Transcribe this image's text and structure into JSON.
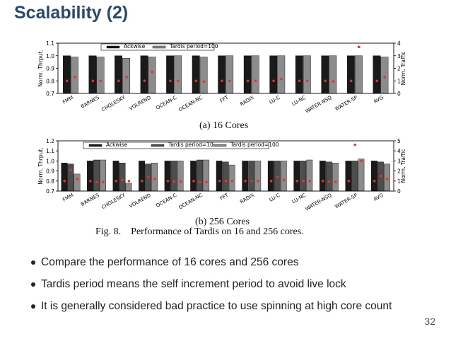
{
  "slide": {
    "title": "Scalability (2)",
    "page_number": "32",
    "figure_caption": "Fig. 8.    Performance of Tardis on 16 and 256 cores.",
    "bullets": [
      "Compare the performance of 16 cores and 256 cores",
      "Tardis period means the self increment period to avoid live lock",
      "It is generally considered bad practice to use spinning at high core count"
    ]
  },
  "colors": {
    "series_black": "#1a1a1a",
    "series_dark": "#4d4d4d",
    "series_gray": "#8c8c8c",
    "traffic_dot": "#e8332a",
    "title": "#2a4a6b"
  },
  "chart_data": [
    {
      "type": "bar",
      "subcaption": "(a) 16 Cores",
      "ylabel": "Norm. Thrput.",
      "y2label": "Norm. Traffic",
      "ylim": [
        0.7,
        1.1
      ],
      "yticks": [
        "0.7",
        "0.8",
        "0.9",
        "1.0",
        "1.1"
      ],
      "y2lim": [
        0,
        4
      ],
      "y2ticks": [
        "0",
        "1",
        "2",
        "3",
        "4"
      ],
      "categories": [
        "FMM",
        "BARNES",
        "CHOLESKY",
        "VOLREND",
        "OCEAN-C",
        "OCEAN-NC",
        "FFT",
        "RADIX",
        "LU-C",
        "LU-NC",
        "WATER-NSQ",
        "WATER-SP",
        "AVG"
      ],
      "series": [
        {
          "name": "Ackwise",
          "values": [
            1.0,
            1.0,
            1.0,
            1.0,
            1.0,
            1.0,
            1.0,
            1.0,
            1.0,
            1.0,
            1.0,
            1.0,
            1.0
          ]
        },
        {
          "name": "Tardis period=100",
          "values": [
            0.99,
            0.99,
            0.98,
            0.99,
            1.0,
            0.99,
            1.0,
            1.0,
            1.0,
            1.0,
            1.0,
            1.0,
            0.99
          ]
        }
      ],
      "traffic": [
        {
          "series": "Ackwise",
          "values": [
            1.0,
            1.0,
            1.0,
            1.0,
            1.0,
            1.0,
            1.0,
            1.0,
            1.0,
            1.0,
            1.0,
            1.0,
            1.0
          ]
        },
        {
          "series": "Tardis period=100",
          "values": [
            1.3,
            1.0,
            1.3,
            1.7,
            1.0,
            0.95,
            1.0,
            1.0,
            1.15,
            1.0,
            0.95,
            3.7,
            1.3
          ]
        }
      ]
    },
    {
      "type": "bar",
      "subcaption": "(b) 256 Cores",
      "ylabel": "Norm. Thrput.",
      "y2label": "Norm. Traffic",
      "ylim": [
        0.7,
        1.2
      ],
      "yticks": [
        "0.7",
        "0.8",
        "0.9",
        "1.0",
        "1.1",
        "1.2"
      ],
      "y2lim": [
        0,
        5
      ],
      "y2ticks": [
        "0",
        "1",
        "2",
        "3",
        "4",
        "5"
      ],
      "categories": [
        "FMM",
        "BARNES",
        "CHOLESKY",
        "VOLREND",
        "OCEAN-C",
        "OCEAN-NC",
        "FFT",
        "RADIX",
        "LU-C",
        "LU-NC",
        "WATER-NSQ",
        "WATER-SP",
        "AVG"
      ],
      "series": [
        {
          "name": "Ackwise",
          "values": [
            0.98,
            1.0,
            1.0,
            1.0,
            1.0,
            1.0,
            1.0,
            1.0,
            1.0,
            1.0,
            1.0,
            1.0,
            1.0
          ]
        },
        {
          "name": "Tardis period=10",
          "values": [
            0.97,
            1.01,
            0.98,
            0.97,
            1.0,
            1.01,
            0.99,
            1.0,
            1.0,
            1.0,
            0.99,
            1.0,
            0.99
          ]
        },
        {
          "name": "Tardis period=100",
          "values": [
            0.87,
            1.01,
            0.78,
            0.98,
            1.0,
            1.01,
            0.96,
            1.0,
            1.0,
            1.01,
            0.98,
            1.02,
            0.97
          ]
        }
      ],
      "traffic": [
        {
          "series": "Ackwise",
          "values": [
            1.0,
            1.0,
            1.0,
            1.0,
            1.0,
            1.0,
            1.0,
            1.0,
            1.0,
            1.0,
            1.0,
            1.0,
            1.0
          ]
        },
        {
          "series": "Tardis period=10",
          "values": [
            2.1,
            0.9,
            1.1,
            1.4,
            0.95,
            0.9,
            1.0,
            1.0,
            1.4,
            1.0,
            0.95,
            4.6,
            1.5
          ]
        },
        {
          "series": "Tardis period=100",
          "values": [
            1.2,
            0.9,
            1.0,
            1.2,
            0.95,
            0.9,
            1.0,
            1.0,
            1.1,
            1.0,
            0.9,
            3.0,
            1.2
          ]
        }
      ]
    }
  ]
}
